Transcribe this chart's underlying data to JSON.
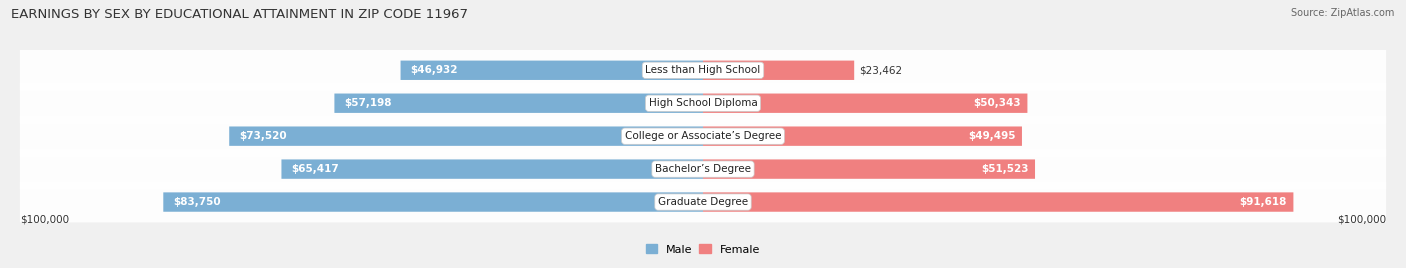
{
  "title": "EARNINGS BY SEX BY EDUCATIONAL ATTAINMENT IN ZIP CODE 11967",
  "source": "Source: ZipAtlas.com",
  "categories": [
    "Less than High School",
    "High School Diploma",
    "College or Associate’s Degree",
    "Bachelor’s Degree",
    "Graduate Degree"
  ],
  "male_values": [
    46932,
    57198,
    73520,
    65417,
    83750
  ],
  "female_values": [
    23462,
    50343,
    49495,
    51523,
    91618
  ],
  "max_value": 100000,
  "male_color": "#7bafd4",
  "female_color": "#f08080",
  "male_label": "Male",
  "female_label": "Female",
  "background_color": "#f0f0f0",
  "title_fontsize": 9.5,
  "source_fontsize": 7,
  "value_fontsize": 7.5,
  "cat_fontsize": 7.5,
  "axis_label_left": "$100,000",
  "axis_label_right": "$100,000",
  "inside_label_threshold": 0.3
}
